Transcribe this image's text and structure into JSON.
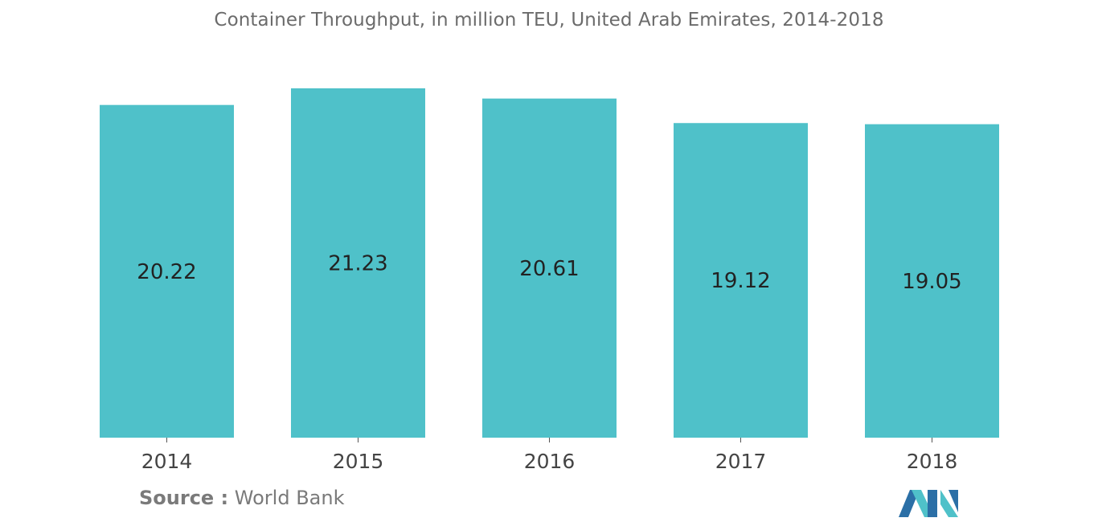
{
  "chart_data": {
    "type": "bar",
    "title": "Container Throughput, in million TEU, United Arab Emirates, 2014-2018",
    "categories": [
      "2014",
      "2015",
      "2016",
      "2017",
      "2018"
    ],
    "values": [
      20.22,
      21.23,
      20.61,
      19.12,
      19.05
    ],
    "value_labels": [
      "20.22",
      "21.23",
      "20.61",
      "19.12",
      "19.05"
    ],
    "xlabel": "",
    "ylabel": "",
    "ylim": [
      0,
      21.23
    ],
    "grid": false,
    "legend": "none",
    "bar_color": "#4fc1c9"
  },
  "source": {
    "label": "Source :",
    "text": "World Bank"
  },
  "colors": {
    "bar": "#4fc1c9",
    "title": "#6b6b6b",
    "axis": "#333333",
    "logo_dark": "#2b6fa6",
    "logo_light": "#4fc1c9"
  }
}
